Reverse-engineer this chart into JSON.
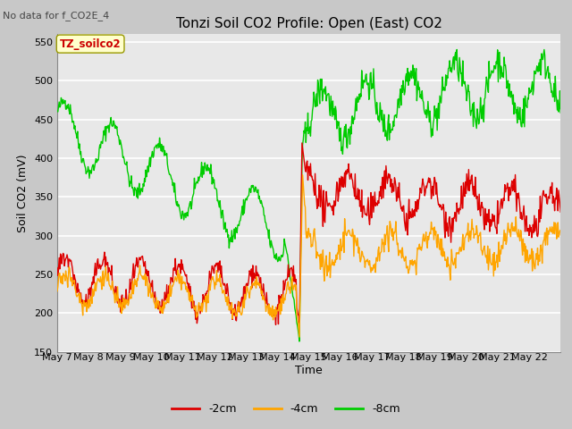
{
  "title": "Tonzi Soil CO2 Profile: Open (East) CO2",
  "no_data_text": "No data for f_CO2E_4",
  "ylabel": "Soil CO2 (mV)",
  "xlabel": "Time",
  "ylim": [
    150,
    560
  ],
  "yticks": [
    150,
    200,
    250,
    300,
    350,
    400,
    450,
    500,
    550
  ],
  "xtick_labels": [
    "May 7",
    "May 8",
    "May 9",
    "May 10",
    "May 11",
    "May 12",
    "May 13",
    "May 14",
    "May 15",
    "May 16",
    "May 17",
    "May 18",
    "May 19",
    "May 20",
    "May 21",
    "May 22"
  ],
  "legend_entries": [
    "-2cm",
    "-4cm",
    "-8cm"
  ],
  "legend_colors": [
    "#dd0000",
    "#ffa500",
    "#00cc00"
  ],
  "color_2cm": "#dd0000",
  "color_4cm": "#ffa500",
  "color_8cm": "#00cc00",
  "line_width": 1.0,
  "fig_bg_color": "#c8c8c8",
  "plot_bg_color": "#e8e8e8",
  "annotation_box_color": "#ffffcc",
  "annotation_text": "TZ_soilco2",
  "annotation_text_color": "#cc0000",
  "title_fontsize": 11,
  "label_fontsize": 9,
  "tick_fontsize": 8,
  "legend_fontsize": 9
}
